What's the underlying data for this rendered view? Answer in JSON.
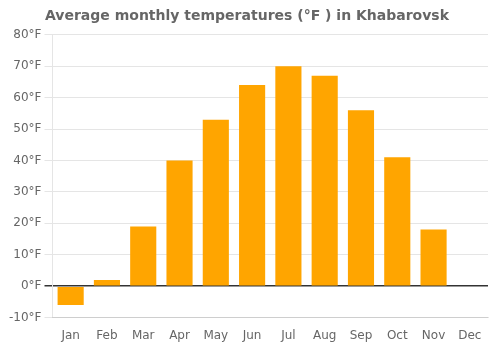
{
  "chart_data": {
    "type": "bar",
    "title": "Average monthly temperatures (°F ) in Khabarovsk",
    "categories": [
      "Jan",
      "Feb",
      "Mar",
      "Apr",
      "May",
      "Jun",
      "Jul",
      "Aug",
      "Sep",
      "Oct",
      "Nov",
      "Dec"
    ],
    "values": [
      -6,
      2,
      19,
      40,
      53,
      64,
      70,
      67,
      56,
      41,
      18,
      0
    ],
    "color": "#FFA500",
    "ylim": [
      -10,
      80
    ],
    "yticks": [
      {
        "value": -10,
        "label": "-10°F"
      },
      {
        "value": 0,
        "label": "0°F"
      },
      {
        "value": 10,
        "label": "10°F"
      },
      {
        "value": 20,
        "label": "20°F"
      },
      {
        "value": 30,
        "label": "30°F"
      },
      {
        "value": 40,
        "label": "40°F"
      },
      {
        "value": 50,
        "label": "50°F"
      },
      {
        "value": 60,
        "label": "60°F"
      },
      {
        "value": 70,
        "label": "70°F"
      },
      {
        "value": 80,
        "label": "80°F"
      }
    ],
    "grid": true
  }
}
